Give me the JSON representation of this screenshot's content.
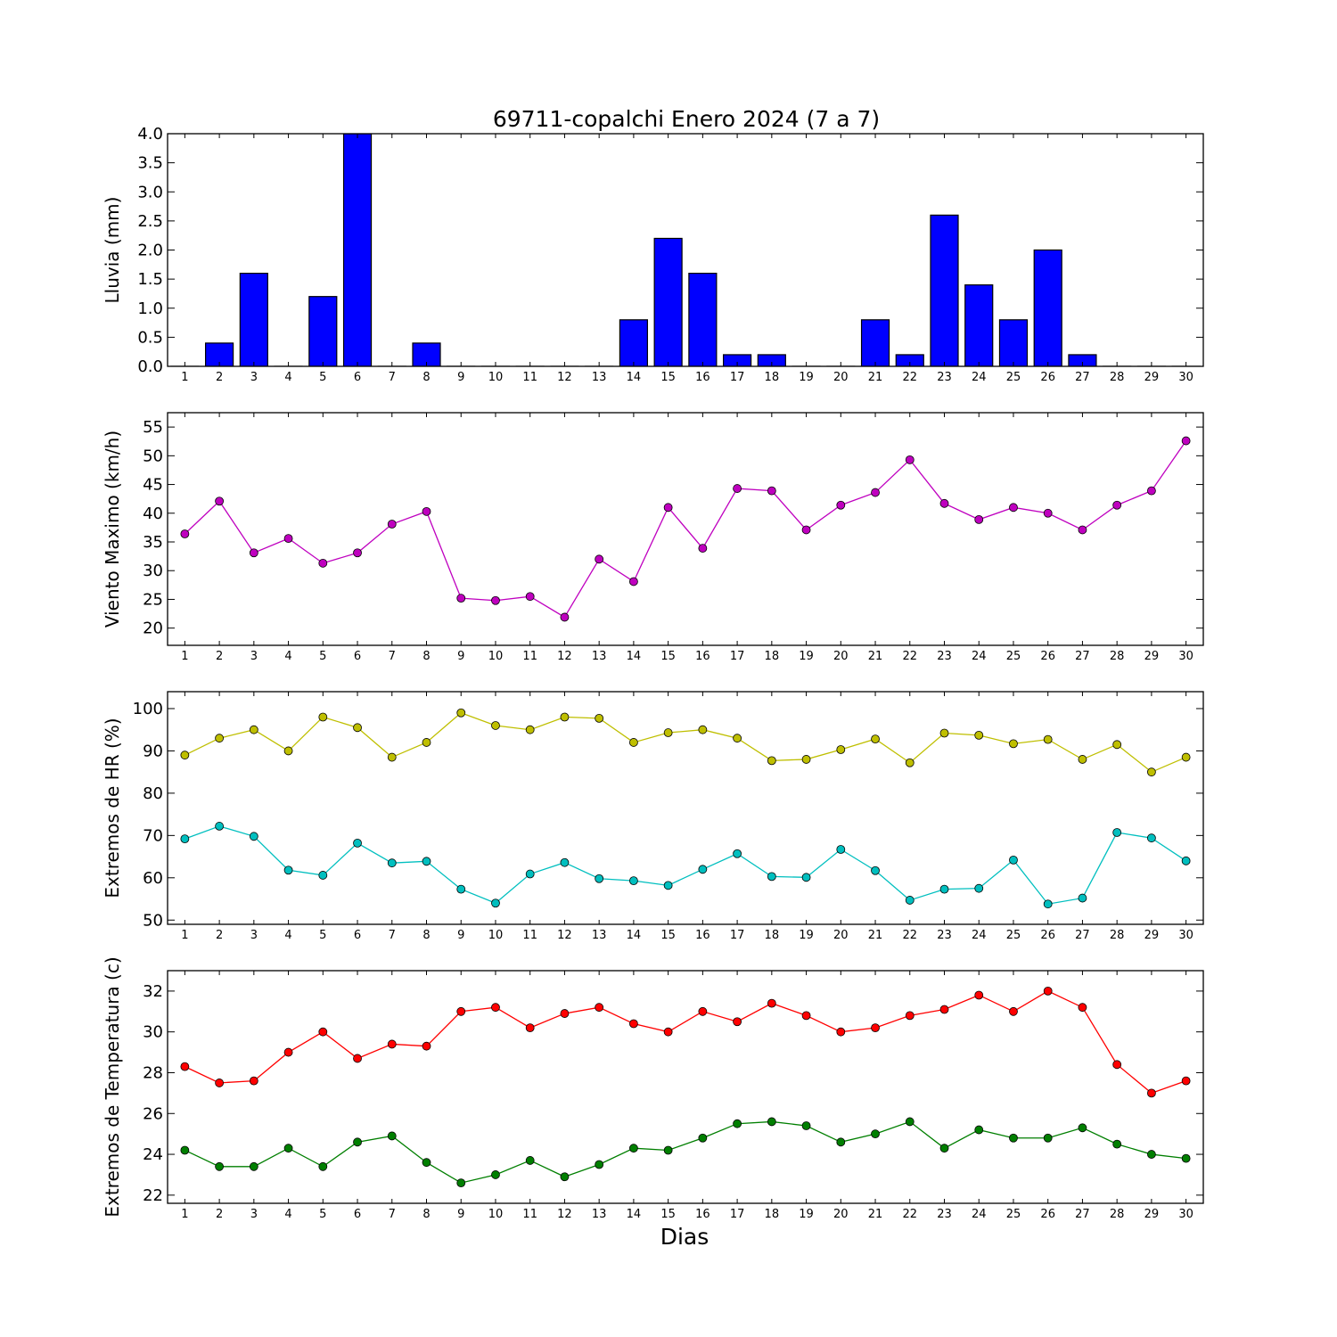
{
  "figure": {
    "title": "69711-copalchi Enero 2024  (7 a 7)",
    "xlabel": "Dias"
  },
  "chart_data": [
    {
      "id": "lluvia",
      "type": "bar",
      "ylabel": "Lluvia (mm)",
      "ylim": [
        0,
        4.0
      ],
      "yticks": [
        0.0,
        0.5,
        1.0,
        1.5,
        2.0,
        2.5,
        3.0,
        3.5,
        4.0
      ],
      "ytick_decimals": 1,
      "xlim": [
        0.5,
        30.5
      ],
      "categories": [
        1,
        2,
        3,
        4,
        5,
        6,
        7,
        8,
        9,
        10,
        11,
        12,
        13,
        14,
        15,
        16,
        17,
        18,
        19,
        20,
        21,
        22,
        23,
        24,
        25,
        26,
        27,
        28,
        29,
        30
      ],
      "grid": false,
      "series": [
        {
          "color": "#0000ff",
          "values": [
            0.0,
            0.4,
            1.6,
            0.0,
            1.2,
            4.0,
            0.0,
            0.4,
            0.0,
            0.0,
            0.0,
            0.0,
            0.0,
            0.8,
            2.2,
            1.6,
            0.2,
            0.2,
            0.0,
            0.0,
            0.8,
            0.2,
            2.6,
            1.4,
            0.8,
            2.0,
            0.2,
            0.0,
            0.0,
            0.0
          ]
        }
      ]
    },
    {
      "id": "viento",
      "type": "line",
      "ylabel": "Viento Maximo (km/h)",
      "ylim": [
        17,
        57.5
      ],
      "yticks": [
        20,
        25,
        30,
        35,
        40,
        45,
        50,
        55
      ],
      "ytick_decimals": 0,
      "xlim": [
        0.5,
        30.5
      ],
      "categories": [
        1,
        2,
        3,
        4,
        5,
        6,
        7,
        8,
        9,
        10,
        11,
        12,
        13,
        14,
        15,
        16,
        17,
        18,
        19,
        20,
        21,
        22,
        23,
        24,
        25,
        26,
        27,
        28,
        29,
        30
      ],
      "grid": false,
      "series": [
        {
          "color": "#bf00bf",
          "values": [
            36.4,
            42.1,
            33.1,
            35.6,
            31.3,
            33.1,
            38.1,
            40.3,
            25.2,
            24.8,
            25.5,
            21.9,
            32.0,
            28.1,
            41.0,
            33.9,
            44.3,
            43.9,
            37.1,
            41.4,
            43.6,
            49.3,
            41.7,
            38.9,
            41.0,
            40.0,
            37.1,
            41.4,
            43.9,
            52.6
          ]
        }
      ]
    },
    {
      "id": "hr",
      "type": "line",
      "ylabel": "Extremos de HR (%)",
      "ylim": [
        49,
        104
      ],
      "yticks": [
        50,
        60,
        70,
        80,
        90,
        100
      ],
      "ytick_decimals": 0,
      "xlim": [
        0.5,
        30.5
      ],
      "categories": [
        1,
        2,
        3,
        4,
        5,
        6,
        7,
        8,
        9,
        10,
        11,
        12,
        13,
        14,
        15,
        16,
        17,
        18,
        19,
        20,
        21,
        22,
        23,
        24,
        25,
        26,
        27,
        28,
        29,
        30
      ],
      "grid": false,
      "series": [
        {
          "color": "#bfbf00",
          "values": [
            89,
            93,
            95,
            90,
            98,
            95.5,
            88.5,
            92,
            99,
            96,
            95,
            98,
            97.7,
            92,
            94.3,
            95,
            93,
            87.7,
            88,
            90.3,
            92.8,
            87.2,
            94.2,
            93.7,
            91.7,
            92.7,
            88,
            91.5,
            85,
            88.5
          ]
        },
        {
          "color": "#00bfbf",
          "values": [
            69.2,
            72.2,
            69.8,
            61.8,
            60.6,
            68.2,
            63.5,
            63.9,
            57.3,
            54,
            60.9,
            63.6,
            59.8,
            59.3,
            58.2,
            62,
            65.7,
            60.3,
            60.1,
            66.7,
            61.7,
            54.7,
            57.3,
            57.5,
            64.2,
            53.8,
            55.2,
            70.7,
            69.4,
            64
          ]
        }
      ]
    },
    {
      "id": "temperatura",
      "type": "line",
      "ylabel": "Extremos de Temperatura (c)",
      "ylim": [
        21.6,
        33.0
      ],
      "yticks": [
        22,
        24,
        26,
        28,
        30,
        32
      ],
      "ytick_decimals": 0,
      "xlim": [
        0.5,
        30.5
      ],
      "categories": [
        1,
        2,
        3,
        4,
        5,
        6,
        7,
        8,
        9,
        10,
        11,
        12,
        13,
        14,
        15,
        16,
        17,
        18,
        19,
        20,
        21,
        22,
        23,
        24,
        25,
        26,
        27,
        28,
        29,
        30
      ],
      "grid": false,
      "series": [
        {
          "color": "#ff0000",
          "values": [
            28.3,
            27.5,
            27.6,
            29.0,
            30.0,
            28.7,
            29.4,
            29.3,
            31.0,
            31.2,
            30.2,
            30.9,
            31.2,
            30.4,
            30.0,
            31.0,
            30.5,
            31.4,
            30.8,
            30.0,
            30.2,
            30.8,
            31.1,
            31.8,
            31.0,
            32.0,
            31.2,
            28.4,
            27.0,
            27.6
          ]
        },
        {
          "color": "#007f00",
          "values": [
            24.2,
            23.4,
            23.4,
            24.3,
            23.4,
            24.6,
            24.9,
            23.6,
            22.6,
            23.0,
            23.7,
            22.9,
            23.5,
            24.3,
            24.2,
            24.8,
            25.5,
            25.6,
            25.4,
            24.6,
            25.0,
            25.6,
            24.3,
            25.2,
            24.8,
            24.8,
            25.3,
            24.5,
            24.0,
            23.8
          ]
        }
      ]
    }
  ]
}
